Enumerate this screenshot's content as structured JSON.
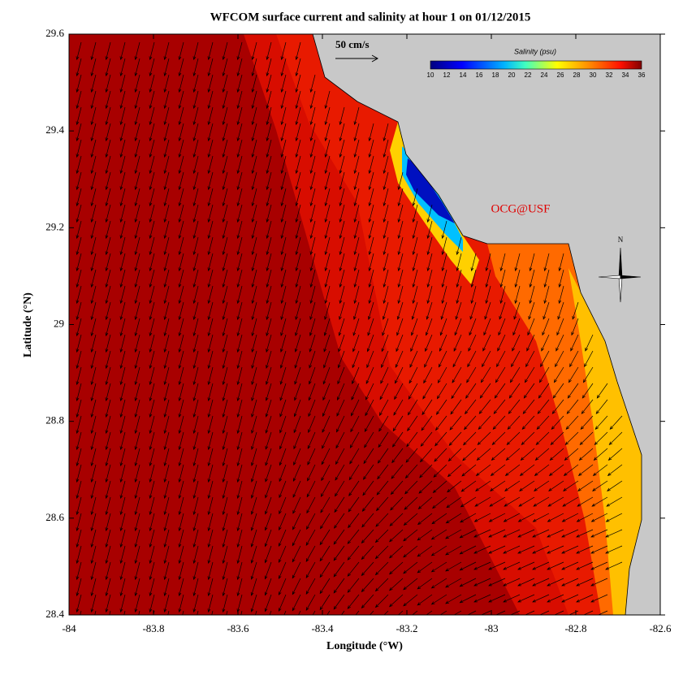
{
  "chart_data": {
    "type": "map",
    "title": "WFCOM surface current and salinity at hour 1 on 01/12/2015",
    "x_label": "Longitude (°W)",
    "y_label": "Latitude (°N)",
    "xlim": [
      -84,
      -82.6
    ],
    "ylim": [
      28.4,
      29.6
    ],
    "xticks": [
      -84,
      -83.8,
      -83.6,
      -83.4,
      -83.2,
      -83,
      -82.8,
      -82.6
    ],
    "yticks": [
      28.4,
      28.6,
      28.8,
      29,
      29.2,
      29.4,
      29.6
    ],
    "colorbar": {
      "label": "Salinity (psu)",
      "lim": [
        10,
        36
      ],
      "ticks": [
        10,
        12,
        14,
        16,
        18,
        20,
        22,
        24,
        26,
        28,
        30,
        32,
        34,
        36
      ]
    },
    "scale_label": "50 cm/s",
    "credit": "OCG@USF",
    "north": "N"
  }
}
